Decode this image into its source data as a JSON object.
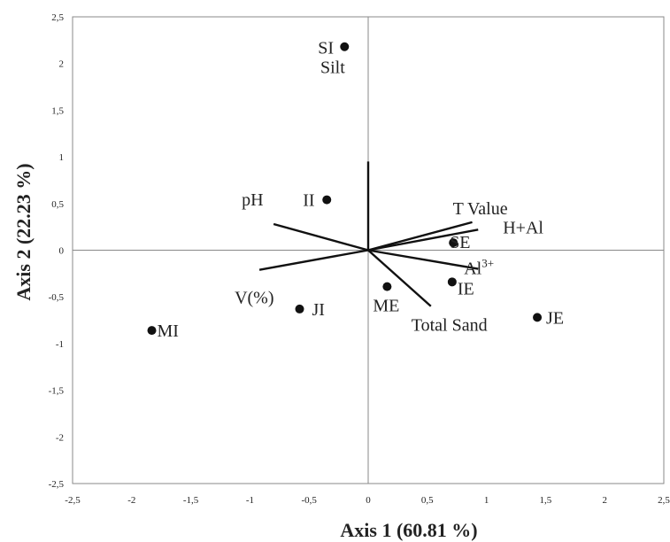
{
  "chart_data": {
    "type": "scatter",
    "title": "",
    "xlabel": "Axis 1 (60.81 %)",
    "ylabel": "Axis 2 (22.23 %)",
    "xlim": [
      -2.5,
      2.5
    ],
    "ylim": [
      -2.5,
      2.5
    ],
    "x_ticks": [
      "-2,5",
      "-2",
      "-1,5",
      "-1",
      "-0,5",
      "0",
      "0,5",
      "1",
      "1,5",
      "2",
      "2,5"
    ],
    "y_ticks": [
      "2,5",
      "2",
      "1,5",
      "1",
      "0,5",
      "0",
      "-0,5",
      "-1",
      "-1,5",
      "-2",
      "-2,5"
    ],
    "grid": false,
    "legend": "none",
    "points": [
      {
        "name": "SI",
        "x": -0.2,
        "y": 2.18
      },
      {
        "name": "II",
        "x": -0.35,
        "y": 0.54
      },
      {
        "name": "SE",
        "x": 0.72,
        "y": 0.08
      },
      {
        "name": "IE",
        "x": 0.71,
        "y": -0.34
      },
      {
        "name": "ME",
        "x": 0.16,
        "y": -0.39
      },
      {
        "name": "JI",
        "x": -0.58,
        "y": -0.63
      },
      {
        "name": "JE",
        "x": 1.43,
        "y": -0.72
      },
      {
        "name": "MI",
        "x": -1.83,
        "y": -0.86
      }
    ],
    "vectors": [
      {
        "name": "Silt",
        "x": 0.0,
        "y": 0.95
      },
      {
        "name": "pH",
        "x": -0.8,
        "y": 0.28
      },
      {
        "name": "V(%)",
        "x": -0.92,
        "y": -0.21
      },
      {
        "name": "T Value",
        "x": 0.88,
        "y": 0.3
      },
      {
        "name": "H+Al",
        "x": 0.93,
        "y": 0.22
      },
      {
        "name": "Al3+",
        "label_main": "Al",
        "label_sup": "3+",
        "x": 0.93,
        "y": -0.2
      },
      {
        "name": "Total Sand",
        "x": 0.53,
        "y": -0.6
      }
    ]
  }
}
